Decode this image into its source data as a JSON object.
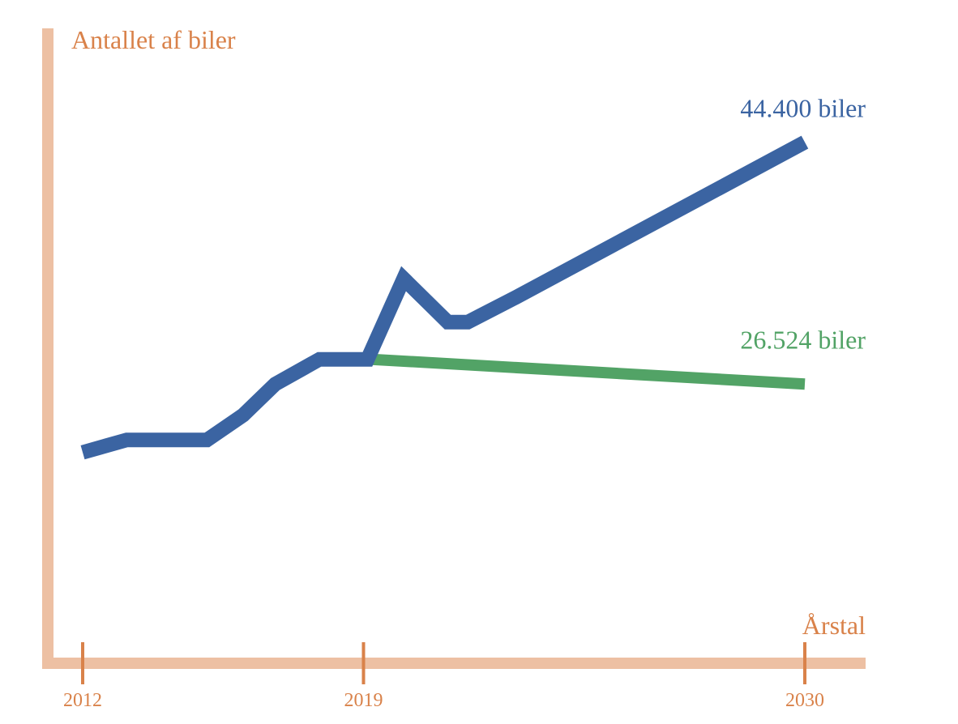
{
  "colors": {
    "axis": "#edc0a3",
    "tick": "#d9824a",
    "label": "#d9824a",
    "blue": "#3b64a2",
    "green": "#52a366"
  },
  "chart_data": {
    "type": "line",
    "ylabel": "Antallet af biler",
    "xlabel": "Årstal",
    "x_ticks": [
      2012,
      2019,
      2030
    ],
    "xlim": [
      2011.0,
      2031.5
    ],
    "ylim": [
      0,
      100
    ],
    "series": [
      {
        "color_key": "blue",
        "end_label": "44.400 biler",
        "points": [
          [
            2012.0,
            34
          ],
          [
            2013.1,
            36
          ],
          [
            2014.0,
            36
          ],
          [
            2015.1,
            36
          ],
          [
            2016.0,
            40
          ],
          [
            2016.8,
            45
          ],
          [
            2017.9,
            49
          ],
          [
            2019.1,
            49
          ],
          [
            2020.0,
            62
          ],
          [
            2021.1,
            55
          ],
          [
            2021.6,
            55
          ],
          [
            2022.8,
            59
          ],
          [
            2030.0,
            84
          ]
        ]
      },
      {
        "color_key": "green",
        "end_label": "26.524 biler",
        "points": [
          [
            2019.2,
            49
          ],
          [
            2030.0,
            45
          ]
        ]
      }
    ]
  }
}
